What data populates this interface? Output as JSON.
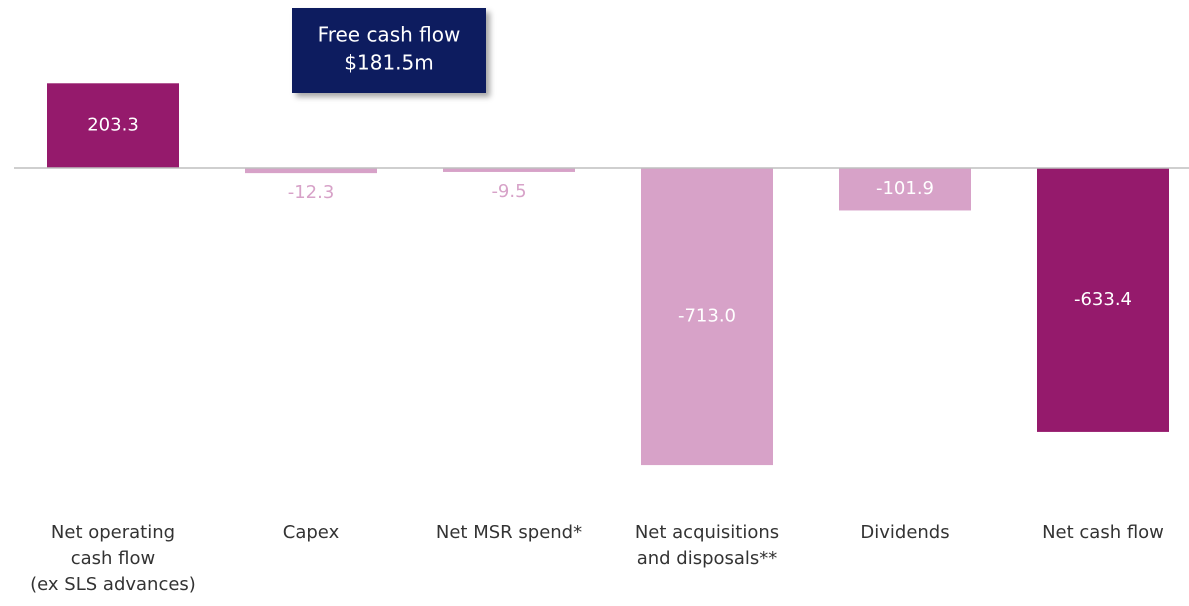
{
  "chart_data": {
    "type": "bar",
    "categories": [
      "Net operating\ncash flow\n(ex SLS advances)",
      "Capex",
      "Net MSR spend*",
      "Net acquisitions\nand disposals**",
      "Dividends",
      "Net cash flow"
    ],
    "values": [
      203.3,
      -12.3,
      -9.5,
      -713.0,
      -101.9,
      -633.4
    ],
    "value_labels": [
      "203.3",
      "-12.3",
      "-9.5",
      "-713.0",
      "-101.9",
      "-633.4"
    ],
    "colors": [
      "#951a6c",
      "#d7a2c8",
      "#d7a2c8",
      "#d7a2c8",
      "#d7a2c8",
      "#951a6c"
    ],
    "ylim": [
      -900,
      300
    ],
    "annotation": [
      "Free cash flow",
      "$181.5m"
    ]
  }
}
